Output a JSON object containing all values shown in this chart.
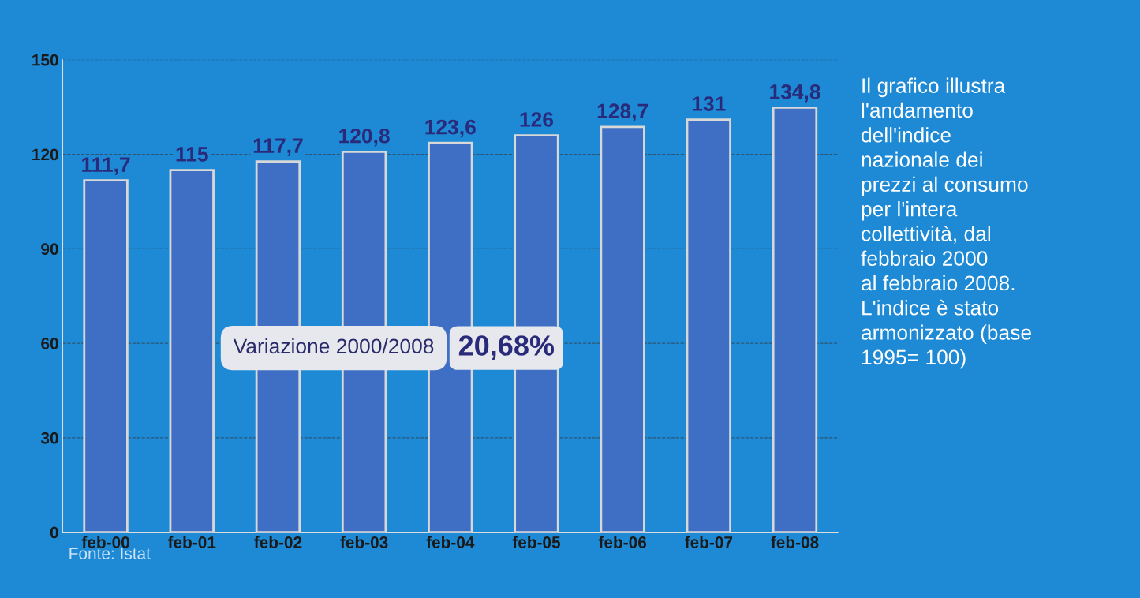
{
  "chart_data": {
    "type": "bar",
    "categories": [
      "feb-00",
      "feb-01",
      "feb-02",
      "feb-03",
      "feb-04",
      "feb-05",
      "feb-06",
      "feb-07",
      "feb-08"
    ],
    "values": [
      111.7,
      115,
      117.7,
      120.8,
      123.6,
      126,
      128.7,
      131,
      134.8
    ],
    "value_labels": [
      "111,7",
      "115",
      "117,7",
      "120,8",
      "123,6",
      "126",
      "128,7",
      "131",
      "134,8"
    ],
    "color": "#3f6fc4",
    "ylim": [
      0,
      150
    ],
    "yticks": [
      0,
      30,
      60,
      90,
      120,
      150
    ],
    "grid": "y",
    "annotations": [
      "Il grafico illustra\nl'andamento\ndell'indice\nnazionale dei\nprezzi al consumo\nper l'intera\ncollettività, dal\nfebbraio 2000\nal febbraio 2008.\nL'indice è stato\narmonizzato (base\n1995= 100)",
      "Variazione 2000/2008",
      "20,68%",
      "Fonte: Istat"
    ]
  }
}
